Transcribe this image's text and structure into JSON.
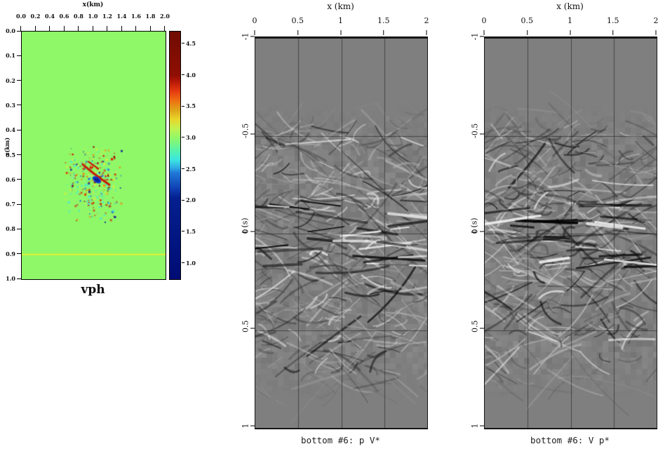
{
  "page": {
    "background_color": "#ffffff"
  },
  "chart_data": [
    {
      "id": "vph-model",
      "type": "heatmap",
      "title": "vph",
      "xlabel": "x(km)",
      "ylabel": "z(km)",
      "xlim": [
        0,
        2
      ],
      "zlim": [
        0,
        1
      ],
      "x_ticks": [
        "0.0",
        "0.2",
        "0.4",
        "0.6",
        "0.8",
        "1.0",
        "1.2",
        "1.4",
        "1.6",
        "1.8",
        "2.0"
      ],
      "z_ticks": [
        "0.0",
        "0.1",
        "0.2",
        "0.3",
        "0.4",
        "0.5",
        "0.6",
        "0.7",
        "0.8",
        "0.9",
        "1.0"
      ],
      "background_value_km_s": 3.0,
      "background_color": "#8ef868",
      "features": {
        "perturbation_patch": {
          "x_km": [
            0.62,
            1.35
          ],
          "z_km": [
            0.46,
            0.76
          ],
          "description": "random +/- velocity perturbation speckle around 3.0 km/s",
          "palette": [
            {
              "color": "#d81e05",
              "w": 0.2
            },
            {
              "color": "#8b0000",
              "w": 0.07
            },
            {
              "color": "#f28a0d",
              "w": 0.08
            },
            {
              "color": "#f2ee30",
              "w": 0.16
            },
            {
              "color": "#b9f05a",
              "w": 0.12
            },
            {
              "color": "#45e8e0",
              "w": 0.22
            },
            {
              "color": "#1f66d9",
              "w": 0.1
            },
            {
              "color": "#0a1f99",
              "w": 0.05
            }
          ]
        },
        "yellow_line": {
          "z_km": 0.9,
          "style": "dotted",
          "color": "#f2ef2c"
        }
      },
      "colorbar": {
        "vmin": 0.75,
        "vmax": 4.7,
        "ticks": [
          "4.5",
          "4.0",
          "3.5",
          "3.0",
          "2.5",
          "2.0",
          "1.5",
          "1.0"
        ],
        "tick_values": [
          4.5,
          4.0,
          3.5,
          3.0,
          2.5,
          2.0,
          1.5,
          1.0
        ],
        "colormap": "jet",
        "stops": [
          {
            "v": 4.7,
            "color": "#700c01"
          },
          {
            "v": 4.0,
            "color": "#8f0e03"
          },
          {
            "v": 3.92,
            "color": "#b01505"
          },
          {
            "v": 3.75,
            "color": "#e63911"
          },
          {
            "v": 3.6,
            "color": "#ee6f12"
          },
          {
            "v": 3.45,
            "color": "#dfa41a"
          },
          {
            "v": 3.3,
            "color": "#e8d62a"
          },
          {
            "v": 3.15,
            "color": "#c1f251"
          },
          {
            "v": 3.0,
            "color": "#8ef868"
          },
          {
            "v": 2.78,
            "color": "#52f2b4"
          },
          {
            "v": 2.65,
            "color": "#3be4e2"
          },
          {
            "v": 2.52,
            "color": "#2fa8e4"
          },
          {
            "v": 2.45,
            "color": "#2079d8"
          },
          {
            "v": 2.18,
            "color": "#0e3cb0"
          },
          {
            "v": 2.05,
            "color": "#04208f"
          },
          {
            "v": 0.75,
            "color": "#000c74"
          }
        ]
      },
      "seed": 1234
    },
    {
      "id": "panel-pv",
      "type": "heatmap",
      "style": "grayscale seismic wavefield image, grid on",
      "xlabel": "x (km)",
      "ylabel": "t (s)",
      "caption": "bottom #6: p V*",
      "xlim": [
        0,
        2
      ],
      "tlim": [
        -1,
        1
      ],
      "x_ticks": [
        "0",
        "0.5",
        "1",
        "1.5",
        "2"
      ],
      "t_ticks": [
        "-1",
        "-0.5",
        "0",
        "0.5",
        "1"
      ],
      "background_color": "#7f7f7f",
      "grid": true,
      "grid_x_km": [
        0.5,
        1.0,
        1.5
      ],
      "grid_t_s": [
        -0.5,
        0.0,
        0.5
      ],
      "seed": 20127,
      "events": 380
    },
    {
      "id": "panel-vp",
      "type": "heatmap",
      "style": "grayscale seismic wavefield image, grid on",
      "xlabel": "x (km)",
      "ylabel": "t (s)",
      "caption": "bottom #6: V p*",
      "xlim": [
        0,
        2
      ],
      "tlim": [
        -1,
        1
      ],
      "x_ticks": [
        "0",
        "0.5",
        "1",
        "1.5",
        "2"
      ],
      "t_ticks": [
        "-1",
        "-0.5",
        "0",
        "0.5",
        "1"
      ],
      "background_color": "#7f7f7f",
      "grid": true,
      "grid_x_km": [
        0.5,
        1.0,
        1.5
      ],
      "grid_t_s": [
        -0.5,
        0.0,
        0.5
      ],
      "seed": 77313,
      "events": 380
    }
  ]
}
